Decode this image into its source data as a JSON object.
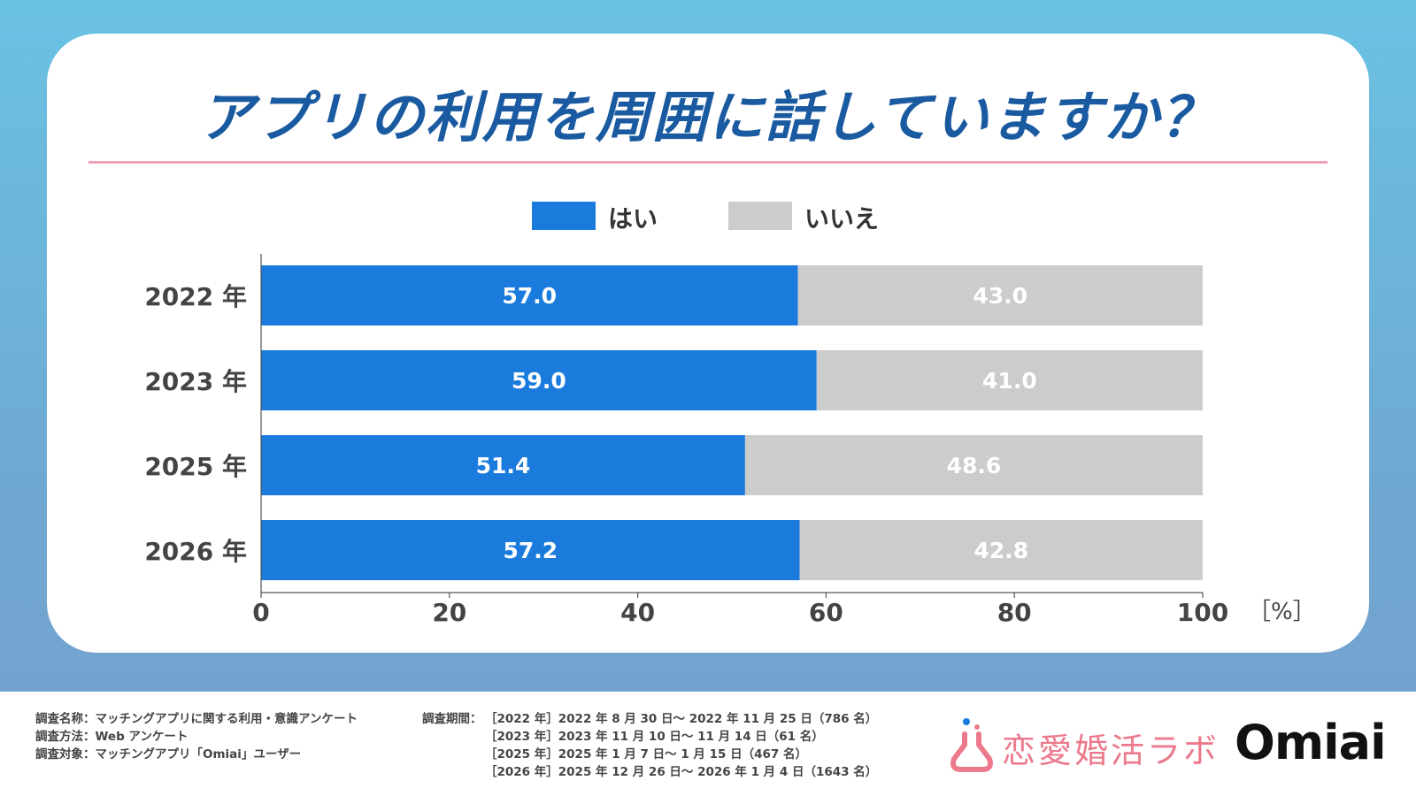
{
  "title": "アプリの利用を周囲に話していますか？",
  "colors": {
    "yes": "#1a7bdc",
    "no": "#cccccc",
    "title": "#1a5aa0",
    "rule": "#f0a3b5"
  },
  "chart_data": {
    "type": "bar",
    "orientation": "horizontal",
    "stacked": true,
    "categories": [
      "2022 年",
      "2023 年",
      "2025 年",
      "2026 年"
    ],
    "series": [
      {
        "name": "はい",
        "values": [
          57.0,
          59.0,
          51.4,
          57.2
        ]
      },
      {
        "name": "いいえ",
        "values": [
          43.0,
          41.0,
          48.6,
          42.8
        ]
      }
    ],
    "xlim": [
      0,
      100
    ],
    "xticks": [
      "0",
      "20",
      "40",
      "60",
      "80",
      "100"
    ],
    "xunit": "［%］",
    "legend_position": "top-center"
  },
  "footer": {
    "survey_name": "調査名称：マッチングアプリに関する利用・意識アンケート",
    "survey_method": "調査方法：Web アンケート",
    "survey_target": "調査対象：マッチングアプリ「Omiai」ユーザー",
    "period_label": "調査期間：",
    "periods": [
      "［2022 年］2022 年 8 月 30 日～ 2022 年 11 月 25 日（786 名）",
      "［2023 年］2023 年 11 月 10 日～ 11 月 14 日（61 名）",
      "［2025 年］2025 年 1 月 7 日～ 1 月 15 日（467 名）",
      "［2026 年］2025 年 12 月 26 日～ 2026 年 1 月 4 日（1643 名）"
    ]
  },
  "logos": {
    "lab": "恋愛婚活ラボ",
    "omiai": "Omiai"
  }
}
